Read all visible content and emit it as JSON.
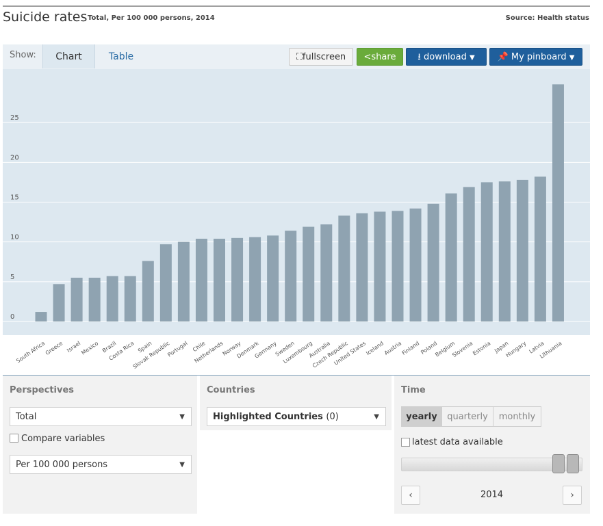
{
  "header": {
    "title": "Suicide rates",
    "subtitle": "Total, Per 100 000 persons, 2014",
    "source": "Source: Health status"
  },
  "toolbar": {
    "show_label": "Show:",
    "tabs": [
      "Chart",
      "Table"
    ],
    "fullscreen_label": "fullscreen",
    "share_label": "share",
    "download_label": "download",
    "pinboard_label": "My pinboard"
  },
  "chart_data": {
    "type": "bar",
    "categories": [
      "South Africa",
      "Greece",
      "Israel",
      "Mexico",
      "Brazil",
      "Costa Rica",
      "Spain",
      "Slovak Republic",
      "Portugal",
      "Chile",
      "Netherlands",
      "Norway",
      "Denmark",
      "Germany",
      "Sweden",
      "Luxembourg",
      "Australia",
      "Czech Republic",
      "United States",
      "Iceland",
      "Austria",
      "Finland",
      "Poland",
      "Belgium",
      "Slovenia",
      "Estonia",
      "Japan",
      "Hungary",
      "Latvia",
      "Lithuania"
    ],
    "values": [
      1.2,
      4.7,
      5.5,
      5.5,
      5.7,
      5.7,
      7.6,
      9.7,
      10.0,
      10.4,
      10.4,
      10.5,
      10.6,
      10.8,
      11.4,
      11.9,
      12.2,
      13.3,
      13.6,
      13.8,
      13.9,
      14.2,
      14.8,
      16.1,
      16.9,
      17.5,
      17.6,
      17.8,
      18.2,
      29.8
    ],
    "yticks": [
      0,
      5,
      10,
      15,
      20,
      25
    ],
    "ylim": [
      0,
      30
    ],
    "grid": true,
    "bar_color": "#8fa3b1",
    "background": "#dde8f0"
  },
  "controls": {
    "perspectives": {
      "title": "Perspectives",
      "select_value": "Total",
      "compare_label": "Compare variables",
      "unit_value": "Per 100 000 persons"
    },
    "countries": {
      "title": "Countries",
      "select_label": "Highlighted Countries",
      "select_count": "(0)"
    },
    "time": {
      "title": "Time",
      "options": [
        "yearly",
        "quarterly",
        "monthly"
      ],
      "latest_label": "latest data available",
      "year": "2014",
      "prev": "‹",
      "next": "›"
    },
    "copyright": "©"
  }
}
